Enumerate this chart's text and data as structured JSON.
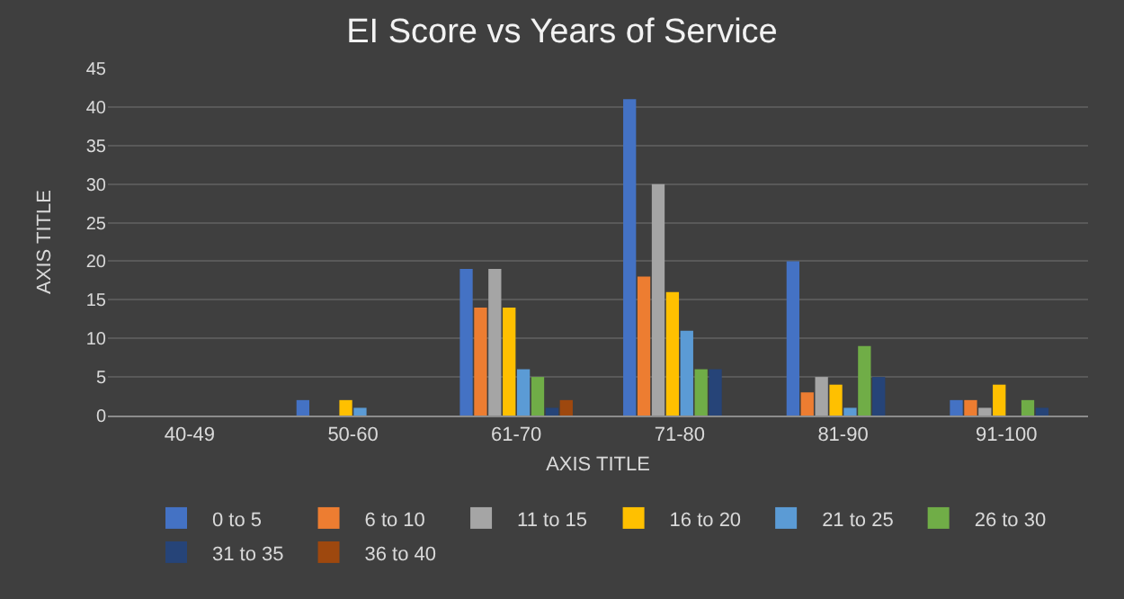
{
  "chart_data": {
    "type": "bar",
    "title": "EI Score vs Years of Service",
    "xlabel": "AXIS TITLE",
    "ylabel": "AXIS TITLE",
    "categories": [
      "40-49",
      "50-60",
      "61-70",
      "71-80",
      "81-90",
      "91-100"
    ],
    "series": [
      {
        "name": "0 to 5",
        "color": "#4472c4",
        "values": [
          0,
          2,
          19,
          41,
          20,
          2
        ]
      },
      {
        "name": "6 to 10",
        "color": "#ed7d31",
        "values": [
          0,
          0,
          14,
          18,
          3,
          2
        ]
      },
      {
        "name": "11 to 15",
        "color": "#a5a5a5",
        "values": [
          0,
          0,
          19,
          30,
          5,
          1
        ]
      },
      {
        "name": "16 to 20",
        "color": "#ffc000",
        "values": [
          0,
          2,
          14,
          16,
          4,
          4
        ]
      },
      {
        "name": "21 to 25",
        "color": "#5b9bd5",
        "values": [
          0,
          1,
          6,
          11,
          1,
          0
        ]
      },
      {
        "name": "26 to 30",
        "color": "#70ad47",
        "values": [
          0,
          0,
          5,
          6,
          9,
          2
        ]
      },
      {
        "name": "31 to 35",
        "color": "#264478",
        "values": [
          0,
          0,
          1,
          6,
          5,
          1
        ]
      },
      {
        "name": "36 to 40",
        "color": "#9e480e",
        "values": [
          0,
          0,
          2,
          0,
          0,
          0
        ]
      }
    ],
    "ylim": [
      0,
      45
    ],
    "yticks": [
      0,
      5,
      10,
      15,
      20,
      25,
      30,
      35,
      40,
      45
    ],
    "grid": "y",
    "legend": "bottom"
  }
}
